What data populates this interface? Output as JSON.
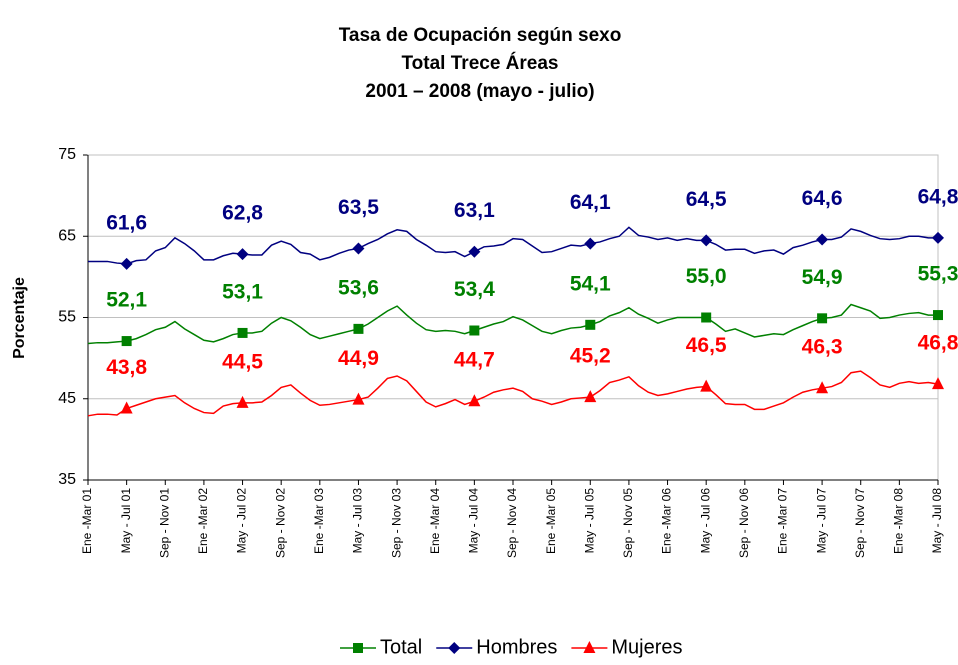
{
  "chart_data": {
    "type": "line",
    "title": [
      "Tasa de Ocupación según sexo",
      "Total  Trece Áreas",
      "2001 – 2008 (mayo - julio)"
    ],
    "y_label": "Porcentaje",
    "categories": [
      "Ene -Mar 01",
      null,
      null,
      null,
      "May - Jul 01",
      null,
      null,
      null,
      "Sep - Nov 01",
      null,
      null,
      null,
      "Ene -Mar 02",
      null,
      null,
      null,
      "May - Jul 02",
      null,
      null,
      null,
      "Sep - Nov 02",
      null,
      null,
      null,
      "Ene -Mar 03",
      null,
      null,
      null,
      "May - Jul 03",
      null,
      null,
      null,
      "Sep - Nov 03",
      null,
      null,
      null,
      "Ene -Mar 04",
      null,
      null,
      null,
      "May - Jul 04",
      null,
      null,
      null,
      "Sep - Nov 04",
      null,
      null,
      null,
      "Ene -Mar 05",
      null,
      null,
      null,
      "May - Jul 05",
      null,
      null,
      null,
      "Sep - Nov 05",
      null,
      null,
      null,
      "Ene -Mar 06",
      null,
      null,
      null,
      "May - Jul 06",
      null,
      null,
      null,
      "Sep - Nov 06",
      null,
      null,
      null,
      "Ene -Mar 07",
      null,
      null,
      null,
      "May - Jul 07",
      null,
      null,
      null,
      "Sep - Nov 07",
      null,
      null,
      null,
      "Ene -Mar 08",
      null,
      null,
      null,
      "May - Jul 08"
    ],
    "ylim": [
      35,
      75
    ],
    "yticks": [
      35,
      45,
      55,
      65,
      75
    ],
    "grid": true,
    "series": [
      {
        "name": "Total",
        "color": "#008000",
        "marker": "square",
        "values": [
          51.8,
          51.9,
          51.9,
          52.0,
          52.1,
          52.4,
          52.9,
          53.5,
          53.8,
          54.5,
          53.6,
          52.9,
          52.2,
          52.0,
          52.4,
          52.9,
          53.1,
          53.1,
          53.3,
          54.3,
          55.0,
          54.6,
          53.8,
          52.9,
          52.4,
          52.7,
          53.0,
          53.3,
          53.6,
          54.2,
          55.0,
          55.8,
          56.4,
          55.3,
          54.3,
          53.5,
          53.3,
          53.4,
          53.3,
          53.0,
          53.4,
          53.8,
          54.2,
          54.5,
          55.1,
          54.7,
          54.0,
          53.3,
          53.0,
          53.4,
          53.7,
          53.8,
          54.1,
          54.5,
          55.2,
          55.6,
          56.2,
          55.4,
          54.9,
          54.3,
          54.7,
          55.0,
          55.0,
          55.0,
          55.0,
          54.2,
          53.3,
          53.6,
          53.1,
          52.6,
          52.8,
          53.0,
          52.9,
          53.5,
          54.0,
          54.5,
          54.9,
          55.0,
          55.3,
          56.6,
          56.2,
          55.8,
          54.9,
          55.0,
          55.3,
          55.5,
          55.6,
          55.3,
          55.3
        ],
        "value_labels": [
          null,
          null,
          null,
          null,
          "52,1",
          null,
          null,
          null,
          null,
          null,
          null,
          null,
          null,
          null,
          null,
          null,
          "53,1",
          null,
          null,
          null,
          null,
          null,
          null,
          null,
          null,
          null,
          null,
          null,
          "53,6",
          null,
          null,
          null,
          null,
          null,
          null,
          null,
          null,
          null,
          null,
          null,
          "53,4",
          null,
          null,
          null,
          null,
          null,
          null,
          null,
          null,
          null,
          null,
          null,
          "54,1",
          null,
          null,
          null,
          null,
          null,
          null,
          null,
          null,
          null,
          null,
          null,
          "55,0",
          null,
          null,
          null,
          null,
          null,
          null,
          null,
          null,
          null,
          null,
          null,
          "54,9",
          null,
          null,
          null,
          null,
          null,
          null,
          null,
          null,
          null,
          null,
          null,
          "55,3"
        ]
      },
      {
        "name": "Hombres",
        "color": "#000080",
        "marker": "diamond",
        "values": [
          61.9,
          61.9,
          61.9,
          61.7,
          61.6,
          62.0,
          62.1,
          63.2,
          63.6,
          64.8,
          64.1,
          63.2,
          62.1,
          62.1,
          62.6,
          62.9,
          62.8,
          62.7,
          62.7,
          63.9,
          64.4,
          64.0,
          63.0,
          62.8,
          62.1,
          62.4,
          62.9,
          63.3,
          63.5,
          64.1,
          64.6,
          65.3,
          65.8,
          65.6,
          64.6,
          63.9,
          63.1,
          63.0,
          63.1,
          62.5,
          63.1,
          63.7,
          63.8,
          64.0,
          64.7,
          64.6,
          63.8,
          63.0,
          63.1,
          63.5,
          63.9,
          63.8,
          64.1,
          64.3,
          64.7,
          65.0,
          66.1,
          65.1,
          64.9,
          64.6,
          64.8,
          64.5,
          64.7,
          64.5,
          64.5,
          64.0,
          63.3,
          63.4,
          63.4,
          62.9,
          63.2,
          63.3,
          62.8,
          63.6,
          63.9,
          64.3,
          64.6,
          64.6,
          64.9,
          65.9,
          65.6,
          65.1,
          64.7,
          64.6,
          64.7,
          65.0,
          65.0,
          64.8,
          64.8
        ],
        "value_labels": [
          null,
          null,
          null,
          null,
          "61,6",
          null,
          null,
          null,
          null,
          null,
          null,
          null,
          null,
          null,
          null,
          null,
          "62,8",
          null,
          null,
          null,
          null,
          null,
          null,
          null,
          null,
          null,
          null,
          null,
          "63,5",
          null,
          null,
          null,
          null,
          null,
          null,
          null,
          null,
          null,
          null,
          null,
          "63,1",
          null,
          null,
          null,
          null,
          null,
          null,
          null,
          null,
          null,
          null,
          null,
          "64,1",
          null,
          null,
          null,
          null,
          null,
          null,
          null,
          null,
          null,
          null,
          null,
          "64,5",
          null,
          null,
          null,
          null,
          null,
          null,
          null,
          null,
          null,
          null,
          null,
          "64,6",
          null,
          null,
          null,
          null,
          null,
          null,
          null,
          null,
          null,
          null,
          null,
          "64,8"
        ]
      },
      {
        "name": "Mujeres",
        "color": "#ff0000",
        "marker": "triangle",
        "values": [
          42.9,
          43.1,
          43.1,
          43.0,
          43.8,
          44.2,
          44.6,
          45.0,
          45.2,
          45.4,
          44.5,
          43.8,
          43.3,
          43.2,
          44.1,
          44.4,
          44.5,
          44.5,
          44.6,
          45.4,
          46.4,
          46.7,
          45.7,
          44.8,
          44.2,
          44.3,
          44.5,
          44.7,
          44.9,
          45.2,
          46.3,
          47.5,
          47.8,
          47.2,
          45.9,
          44.6,
          44.0,
          44.4,
          44.9,
          44.3,
          44.7,
          45.2,
          45.8,
          46.1,
          46.3,
          45.9,
          45.0,
          44.7,
          44.3,
          44.6,
          45.0,
          45.1,
          45.2,
          46.0,
          47.0,
          47.3,
          47.7,
          46.6,
          45.8,
          45.4,
          45.6,
          45.9,
          46.2,
          46.4,
          46.5,
          45.5,
          44.4,
          44.3,
          44.3,
          43.7,
          43.7,
          44.1,
          44.5,
          45.2,
          45.8,
          46.1,
          46.3,
          46.5,
          47.0,
          48.2,
          48.4,
          47.6,
          46.7,
          46.4,
          46.9,
          47.1,
          46.9,
          47.0,
          46.8
        ],
        "value_labels": [
          null,
          null,
          null,
          null,
          "43,8",
          null,
          null,
          null,
          null,
          null,
          null,
          null,
          null,
          null,
          null,
          null,
          "44,5",
          null,
          null,
          null,
          null,
          null,
          null,
          null,
          null,
          null,
          null,
          null,
          "44,9",
          null,
          null,
          null,
          null,
          null,
          null,
          null,
          null,
          null,
          null,
          null,
          "44,7",
          null,
          null,
          null,
          null,
          null,
          null,
          null,
          null,
          null,
          null,
          null,
          "45,2",
          null,
          null,
          null,
          null,
          null,
          null,
          null,
          null,
          null,
          null,
          null,
          "46,5",
          null,
          null,
          null,
          null,
          null,
          null,
          null,
          null,
          null,
          null,
          null,
          "46,3",
          null,
          null,
          null,
          null,
          null,
          null,
          null,
          null,
          null,
          null,
          null,
          "46,8"
        ]
      }
    ]
  }
}
